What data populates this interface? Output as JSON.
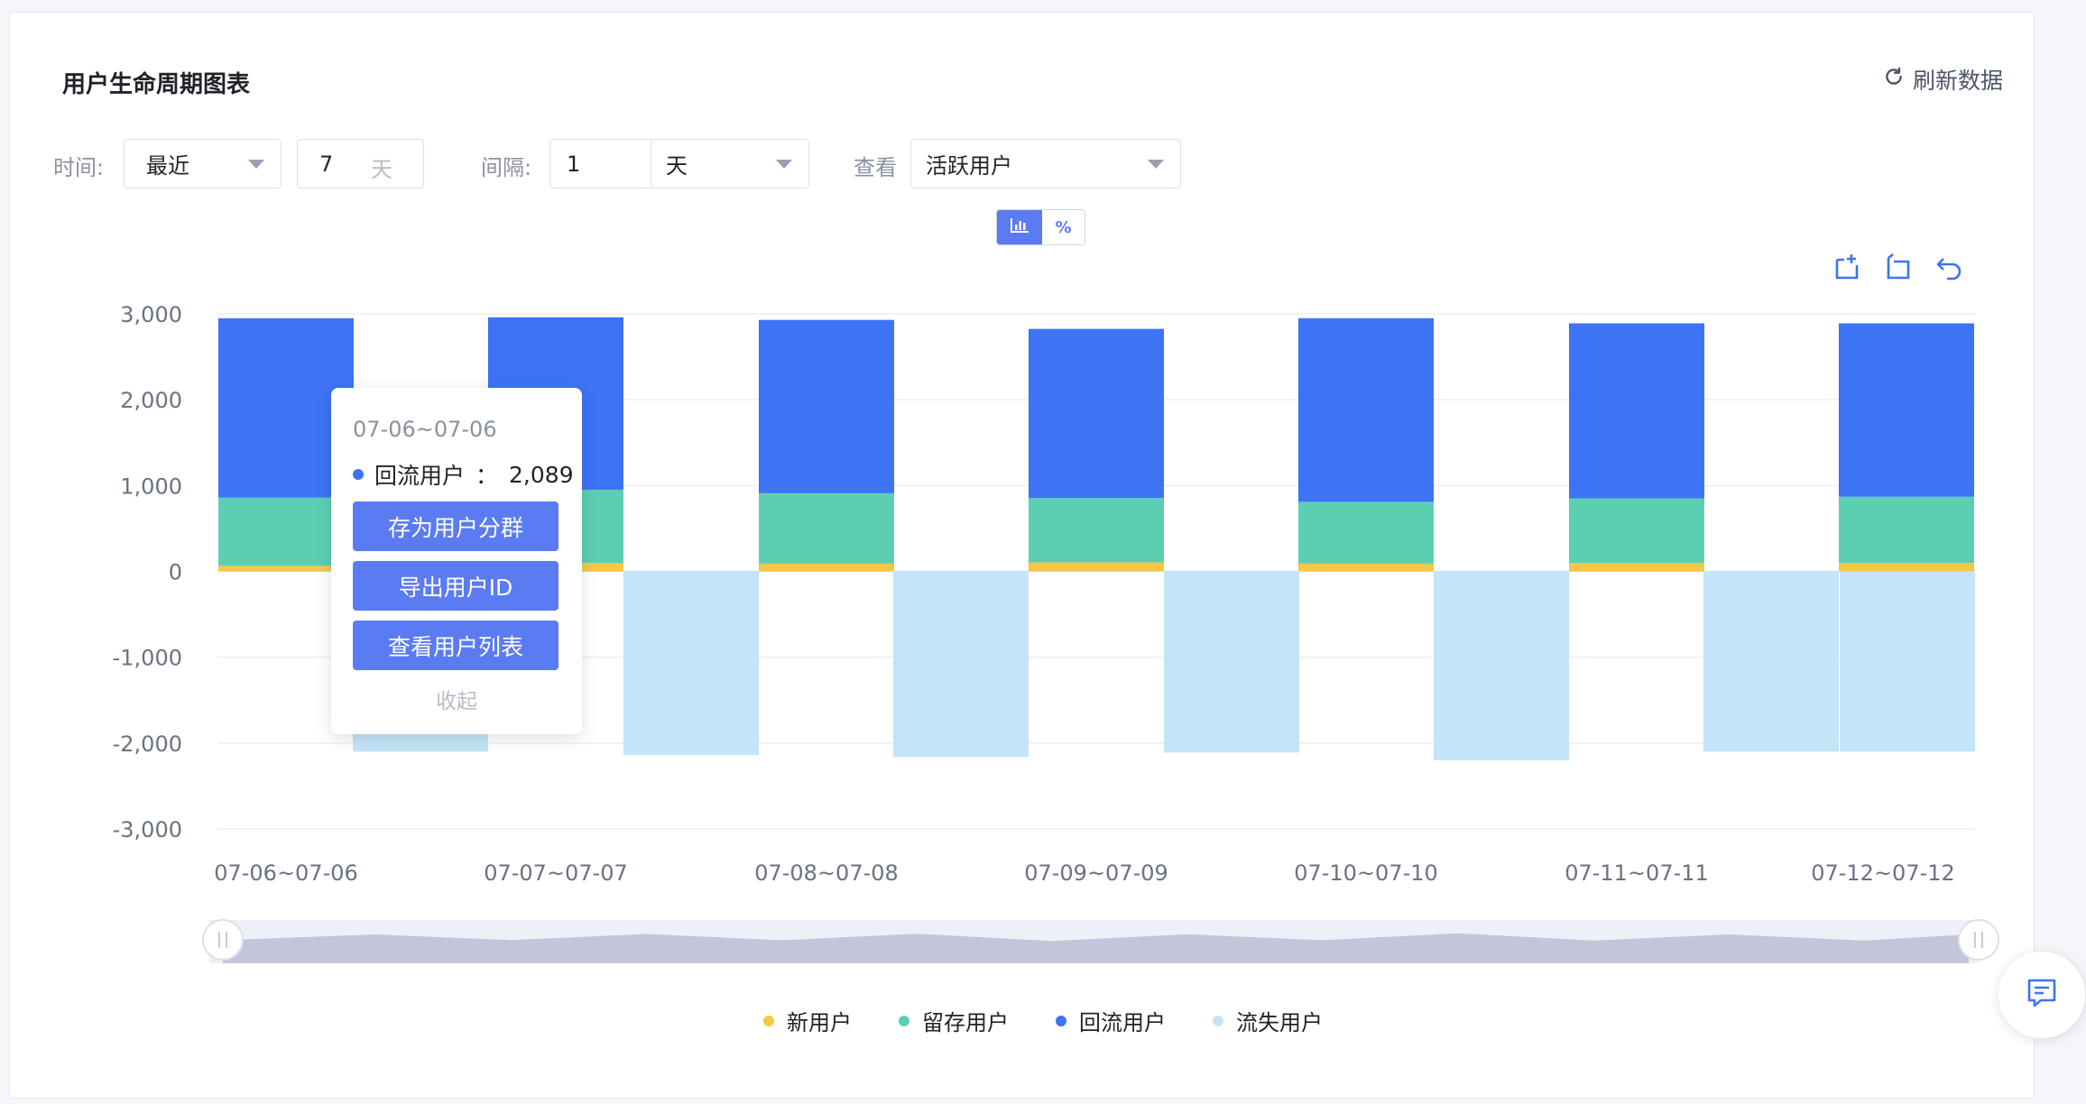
{
  "header": {
    "title": "用户生命周期图表",
    "refresh_label": "刷新数据"
  },
  "filters": {
    "time_label": "时间:",
    "time_range": "最近",
    "time_value": "7",
    "time_unit": "天",
    "interval_label": "间隔:",
    "interval_value": "1",
    "interval_unit": "天",
    "view_label": "查看",
    "view_value": "活跃用户"
  },
  "view_toggle": {
    "percent_label": "%"
  },
  "tooltip": {
    "date": "07-06~07-06",
    "series": "回流用户",
    "value_text": "2,089",
    "buttons": [
      "存为用户分群",
      "导出用户ID",
      "查看用户列表"
    ],
    "collapse": "收起"
  },
  "colors": {
    "新用户": "#f6c744",
    "留存用户": "#5ccfb3",
    "回流用户": "#3d73f5",
    "流失用户": "#c4e4f7",
    "accent": "#5b7bf2"
  },
  "chart_data": {
    "type": "bar",
    "stacked": true,
    "categories": [
      "07-06~07-06",
      "07-07~07-07",
      "07-08~07-08",
      "07-09~07-09",
      "07-10~07-10",
      "07-11~07-11",
      "07-12~07-12"
    ],
    "series": [
      {
        "name": "新用户",
        "values": [
          65,
          100,
          90,
          105,
          90,
          100,
          100
        ]
      },
      {
        "name": "留存用户",
        "values": [
          795,
          850,
          820,
          750,
          720,
          750,
          770
        ]
      },
      {
        "name": "回流用户",
        "values": [
          2089,
          2010,
          2020,
          1970,
          2140,
          2040,
          2020
        ]
      },
      {
        "name": "流失用户",
        "values": [
          -2100,
          -2140,
          -2160,
          -2110,
          -2200,
          -2100,
          -2100
        ]
      }
    ],
    "ylim": [
      -3000,
      3000
    ],
    "yticks": [
      3000,
      2000,
      1000,
      0,
      -1000,
      -2000,
      -3000
    ],
    "ytick_labels": [
      "3,000",
      "2,000",
      "1,000",
      "0",
      "-1,000",
      "-2,000",
      "-3,000"
    ],
    "grid": true,
    "legend_position": "bottom"
  }
}
